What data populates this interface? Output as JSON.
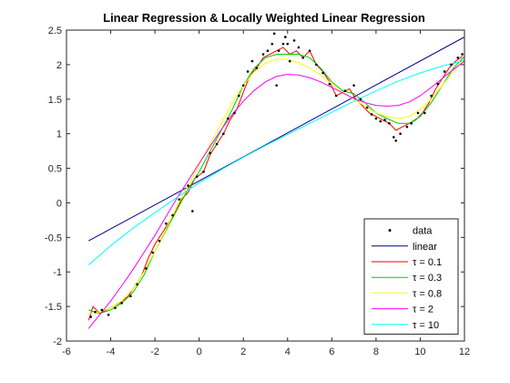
{
  "chart_data": {
    "type": "line",
    "title": "Linear Regression & Locally Weighted Linear Regression",
    "xlabel": "",
    "ylabel": "",
    "xlim": [
      -6,
      12
    ],
    "ylim": [
      -2,
      2.5
    ],
    "x_ticks": [
      -6,
      -4,
      -2,
      0,
      2,
      4,
      6,
      8,
      10,
      12
    ],
    "y_ticks": [
      -2,
      -1.5,
      -1,
      -0.5,
      0,
      0.5,
      1,
      1.5,
      2,
      2.5
    ],
    "legend_position": "bottom-right",
    "grid": false,
    "scatter": {
      "name": "data",
      "color": "#000000",
      "points": [
        [
          -4.9,
          -1.65
        ],
        [
          -4.7,
          -1.58
        ],
        [
          -4.4,
          -1.55
        ],
        [
          -4.1,
          -1.62
        ],
        [
          -3.8,
          -1.52
        ],
        [
          -3.5,
          -1.45
        ],
        [
          -3.1,
          -1.35
        ],
        [
          -2.8,
          -1.18
        ],
        [
          -2.4,
          -0.95
        ],
        [
          -2.1,
          -0.72
        ],
        [
          -1.8,
          -0.55
        ],
        [
          -1.5,
          -0.3
        ],
        [
          -1.2,
          -0.18
        ],
        [
          -0.9,
          0.05
        ],
        [
          -0.5,
          0.25
        ],
        [
          -0.3,
          -0.12
        ],
        [
          -0.1,
          0.38
        ],
        [
          0.2,
          0.45
        ],
        [
          0.5,
          0.72
        ],
        [
          0.8,
          0.85
        ],
        [
          1.1,
          1.0
        ],
        [
          1.3,
          1.22
        ],
        [
          1.6,
          1.3
        ],
        [
          1.8,
          1.55
        ],
        [
          2.0,
          1.7
        ],
        [
          2.2,
          1.9
        ],
        [
          2.4,
          2.05
        ],
        [
          2.6,
          1.95
        ],
        [
          2.9,
          2.15
        ],
        [
          3.1,
          2.2
        ],
        [
          3.3,
          2.3
        ],
        [
          3.4,
          2.45
        ],
        [
          3.5,
          1.7
        ],
        [
          3.6,
          2.2
        ],
        [
          3.8,
          2.3
        ],
        [
          3.9,
          2.4
        ],
        [
          4.0,
          2.3
        ],
        [
          4.1,
          2.05
        ],
        [
          4.3,
          2.35
        ],
        [
          4.5,
          2.25
        ],
        [
          4.7,
          2.1
        ],
        [
          5.0,
          2.2
        ],
        [
          5.3,
          2.0
        ],
        [
          5.6,
          1.88
        ],
        [
          5.9,
          1.72
        ],
        [
          6.2,
          1.55
        ],
        [
          6.6,
          1.62
        ],
        [
          7.0,
          1.7
        ],
        [
          7.3,
          1.5
        ],
        [
          7.6,
          1.38
        ],
        [
          7.8,
          1.28
        ],
        [
          8.0,
          1.22
        ],
        [
          8.2,
          1.18
        ],
        [
          8.4,
          1.2
        ],
        [
          8.6,
          1.15
        ],
        [
          8.8,
          0.95
        ],
        [
          8.9,
          0.9
        ],
        [
          9.1,
          1.0
        ],
        [
          9.4,
          1.1
        ],
        [
          9.6,
          1.15
        ],
        [
          9.9,
          1.3
        ],
        [
          10.2,
          1.3
        ],
        [
          10.5,
          1.55
        ],
        [
          10.8,
          1.72
        ],
        [
          11.1,
          1.9
        ],
        [
          11.4,
          2.0
        ],
        [
          11.7,
          2.1
        ],
        [
          11.9,
          2.15
        ]
      ]
    },
    "series": [
      {
        "name": "linear",
        "color": "#00008B",
        "x": [
          -5,
          12
        ],
        "y": [
          -0.55,
          2.4
        ]
      },
      {
        "name": "τ = 0.1",
        "color": "#FF0000",
        "x": [
          -5,
          -4.8,
          -4.5,
          -4.2,
          -3.9,
          -3.6,
          -3.2,
          -2.9,
          -2.6,
          -2.3,
          -2,
          -1.7,
          -1.4,
          -1.1,
          -0.8,
          -0.5,
          -0.2,
          0.2,
          0.5,
          0.8,
          1.1,
          1.4,
          1.7,
          2,
          2.3,
          2.6,
          2.9,
          3.2,
          3.5,
          3.8,
          4.1,
          4.4,
          4.7,
          5,
          5.3,
          5.6,
          5.9,
          6.2,
          6.5,
          6.8,
          7.1,
          7.4,
          7.7,
          8,
          8.3,
          8.6,
          8.9,
          9.2,
          9.5,
          9.8,
          10.1,
          10.4,
          10.7,
          11,
          11.3,
          11.6,
          11.9
        ],
        "y": [
          -1.7,
          -1.5,
          -1.6,
          -1.55,
          -1.5,
          -1.45,
          -1.35,
          -1.2,
          -1.05,
          -0.8,
          -0.6,
          -0.45,
          -0.3,
          -0.15,
          0.05,
          0.15,
          0.35,
          0.45,
          0.7,
          0.85,
          1.0,
          1.2,
          1.35,
          1.6,
          1.85,
          1.95,
          2.1,
          2.15,
          2.2,
          2.25,
          2.15,
          2.2,
          2.1,
          2.2,
          2.0,
          1.9,
          1.75,
          1.55,
          1.6,
          1.65,
          1.5,
          1.4,
          1.3,
          1.25,
          1.2,
          1.15,
          1.05,
          1.1,
          1.15,
          1.2,
          1.3,
          1.45,
          1.65,
          1.8,
          1.95,
          2.05,
          2.12
        ]
      },
      {
        "name": "τ = 0.3",
        "color": "#00CC00",
        "x": [
          -5,
          -4.5,
          -4,
          -3.5,
          -3,
          -2.5,
          -2,
          -1.5,
          -1,
          -0.5,
          0,
          0.5,
          1,
          1.5,
          2,
          2.5,
          3,
          3.5,
          4,
          4.5,
          5,
          5.5,
          6,
          6.5,
          7,
          7.5,
          8,
          8.5,
          9,
          9.5,
          10,
          10.5,
          11,
          11.5,
          12
        ],
        "y": [
          -1.55,
          -1.6,
          -1.55,
          -1.45,
          -1.3,
          -1.05,
          -0.7,
          -0.4,
          -0.1,
          0.2,
          0.45,
          0.75,
          1.05,
          1.35,
          1.7,
          1.95,
          2.1,
          2.15,
          2.15,
          2.15,
          2.1,
          1.95,
          1.75,
          1.62,
          1.58,
          1.45,
          1.3,
          1.22,
          1.15,
          1.15,
          1.25,
          1.45,
          1.7,
          1.95,
          2.12
        ]
      },
      {
        "name": "τ = 0.8",
        "color": "#FFFF00",
        "x": [
          -5,
          -4.5,
          -4,
          -3.5,
          -3,
          -2.5,
          -2,
          -1.5,
          -1,
          -0.5,
          0,
          0.5,
          1,
          1.5,
          2,
          2.5,
          3,
          3.5,
          4,
          4.5,
          5,
          5.5,
          6,
          6.5,
          7,
          7.5,
          8,
          8.5,
          9,
          9.5,
          10,
          10.5,
          11,
          11.5,
          12
        ],
        "y": [
          -1.6,
          -1.58,
          -1.52,
          -1.42,
          -1.25,
          -1.0,
          -0.7,
          -0.38,
          -0.05,
          0.25,
          0.55,
          0.85,
          1.15,
          1.45,
          1.7,
          1.9,
          2.02,
          2.08,
          2.08,
          2.03,
          1.95,
          1.85,
          1.72,
          1.6,
          1.5,
          1.4,
          1.3,
          1.25,
          1.22,
          1.25,
          1.35,
          1.5,
          1.7,
          1.9,
          2.1
        ]
      },
      {
        "name": "τ = 2",
        "color": "#FF00FF",
        "x": [
          -5,
          -4.5,
          -4,
          -3.5,
          -3,
          -2.5,
          -2,
          -1.5,
          -1,
          -0.5,
          0,
          0.5,
          1,
          1.5,
          2,
          2.5,
          3,
          3.5,
          4,
          4.5,
          5,
          5.5,
          6,
          6.5,
          7,
          7.5,
          8,
          8.5,
          9,
          9.5,
          10,
          10.5,
          11,
          11.5,
          12
        ],
        "y": [
          -1.82,
          -1.62,
          -1.42,
          -1.2,
          -0.97,
          -0.72,
          -0.47,
          -0.2,
          0.07,
          0.32,
          0.57,
          0.82,
          1.06,
          1.28,
          1.47,
          1.63,
          1.75,
          1.83,
          1.86,
          1.85,
          1.81,
          1.75,
          1.67,
          1.59,
          1.51,
          1.45,
          1.41,
          1.4,
          1.41,
          1.46,
          1.55,
          1.67,
          1.8,
          1.93,
          2.05
        ]
      },
      {
        "name": "τ = 10",
        "color": "#00FFFF",
        "x": [
          -5,
          -4,
          -3,
          -2,
          -1,
          0,
          1,
          2,
          3,
          4,
          5,
          6,
          7,
          8,
          9,
          10,
          11,
          12
        ],
        "y": [
          -0.9,
          -0.62,
          -0.37,
          -0.14,
          0.08,
          0.29,
          0.48,
          0.66,
          0.83,
          0.99,
          1.15,
          1.31,
          1.47,
          1.62,
          1.76,
          1.88,
          1.98,
          2.06
        ]
      }
    ]
  }
}
